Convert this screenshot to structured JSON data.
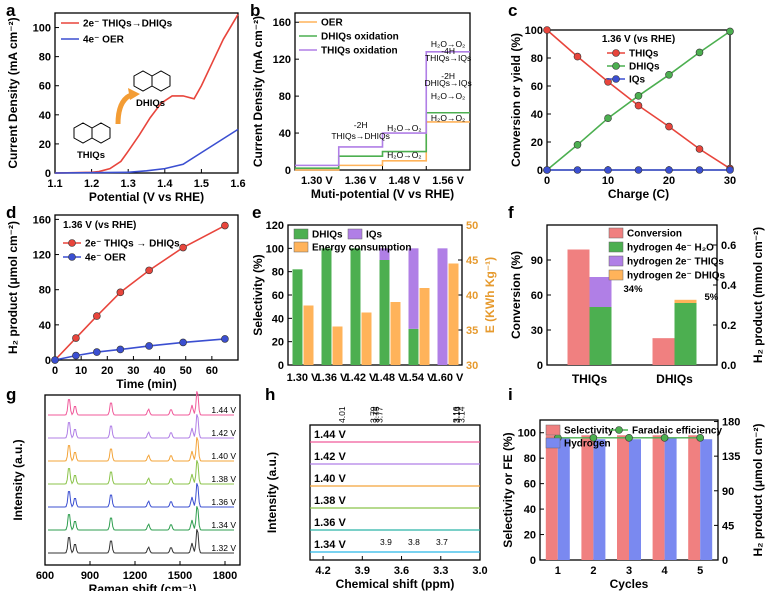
{
  "colors": {
    "red": "#e8453c",
    "blue": "#3b4fd1",
    "green": "#4caf50",
    "purple": "#b07fe6",
    "orange": "#ffb35a",
    "teal": "#2bb3a6",
    "cyan": "#29b6e8",
    "pink": "#f08080",
    "lightgreen": "#7fd07f"
  },
  "chart_data": [
    {
      "panel": "a",
      "type": "line",
      "xlabel": "Potential (V vs RHE)",
      "ylabel": "Current Density (mA cm⁻²)",
      "xlim": [
        1.1,
        1.6
      ],
      "ylim": [
        0,
        110
      ],
      "xticks": [
        "1.1",
        "1.2",
        "1.3",
        "1.4",
        "1.5",
        "1.6"
      ],
      "yticks": [
        "0",
        "20",
        "40",
        "60",
        "80",
        "100"
      ],
      "series": [
        {
          "name": "2e⁻ THIQs→DHIQs",
          "color": "red",
          "x": [
            1.1,
            1.2,
            1.22,
            1.25,
            1.28,
            1.3,
            1.33,
            1.36,
            1.39,
            1.42,
            1.45,
            1.48,
            1.5,
            1.53,
            1.56,
            1.6
          ],
          "y": [
            0,
            0.5,
            1,
            3,
            8,
            15,
            26,
            38,
            48,
            53,
            53,
            51,
            60,
            76,
            92,
            109
          ]
        },
        {
          "name": "4e⁻ OER",
          "color": "blue",
          "x": [
            1.1,
            1.3,
            1.35,
            1.4,
            1.45,
            1.5,
            1.55,
            1.6
          ],
          "y": [
            0,
            0.5,
            1.5,
            3,
            6,
            14,
            22,
            30
          ]
        }
      ],
      "annotations": [
        "DHIQs",
        "THIQs"
      ]
    },
    {
      "panel": "b",
      "type": "line",
      "xlabel": "Muti-potential (V vs RHE)",
      "ylabel": "Current Density (mA cm⁻²)",
      "categories": [
        "1.30 V",
        "1.36 V",
        "1.48 V",
        "1.56 V"
      ],
      "ylim": [
        0,
        170
      ],
      "yticks": [
        "0",
        "40",
        "80",
        "120",
        "160"
      ],
      "series": [
        {
          "name": "OER",
          "color": "orange",
          "values": [
            0,
            5,
            10,
            52
          ]
        },
        {
          "name": "DHIQs oxidation",
          "color": "green",
          "values": [
            2,
            15,
            20,
            62
          ]
        },
        {
          "name": "THIQs oxidation",
          "color": "purple",
          "values": [
            5,
            25,
            40,
            128
          ]
        }
      ],
      "annotations": [
        "THIQs→DHIQs",
        "-2H",
        "H₂O→O₂",
        "H₂O→O₂",
        "DHIQs→IQs",
        "THIQs→IQs",
        "-4H",
        "-2H",
        "H₂O→O₂",
        "H₂O→O₂",
        "H₂O→O₂",
        "H₂O→O₂"
      ]
    },
    {
      "panel": "c",
      "type": "line",
      "xlabel": "Charge (C)",
      "ylabel": "Conversion or yield (%)",
      "xlim": [
        0,
        30
      ],
      "ylim": [
        0,
        100
      ],
      "xticks": [
        "0",
        "10",
        "20",
        "30"
      ],
      "yticks": [
        "0",
        "20",
        "40",
        "60",
        "80",
        "100"
      ],
      "note": "1.36 V (vs RHE)",
      "series": [
        {
          "name": "THIQs",
          "color": "red",
          "x": [
            0,
            5,
            10,
            15,
            20,
            25,
            30
          ],
          "y": [
            100,
            81,
            63,
            46,
            31,
            15,
            1
          ]
        },
        {
          "name": "DHIQs",
          "color": "green",
          "x": [
            0,
            5,
            10,
            15,
            20,
            25,
            30
          ],
          "y": [
            0,
            18,
            37,
            53,
            68,
            84,
            99
          ]
        },
        {
          "name": "IQs",
          "color": "blue",
          "x": [
            0,
            5,
            10,
            15,
            20,
            25,
            30
          ],
          "y": [
            0,
            0,
            0,
            0,
            0,
            0,
            0
          ]
        }
      ]
    },
    {
      "panel": "d",
      "type": "line",
      "xlabel": "Time (min)",
      "ylabel": "H₂ product (μmol cm⁻²)",
      "xlim": [
        0,
        70
      ],
      "ylim": [
        0,
        165
      ],
      "xticks": [
        "0",
        "10",
        "20",
        "30",
        "40",
        "50",
        "60"
      ],
      "yticks": [
        "0",
        "40",
        "80",
        "120",
        "160"
      ],
      "note": "1.36 V (vs RHE)",
      "series": [
        {
          "name": "2e⁻ THIQs → DHIQs",
          "color": "red",
          "x": [
            0,
            8,
            16,
            25,
            36,
            49,
            65
          ],
          "y": [
            0,
            25,
            50,
            77,
            102,
            128,
            153
          ]
        },
        {
          "name": "4e⁻ OER",
          "color": "blue",
          "x": [
            0,
            8,
            16,
            25,
            36,
            49,
            65
          ],
          "y": [
            0,
            5,
            9,
            12,
            16,
            20,
            24
          ]
        }
      ]
    },
    {
      "panel": "e",
      "type": "bar",
      "categories": [
        "1.30 V",
        "1.36 V",
        "1.42 V",
        "1.48 V",
        "1.54 V",
        "1.60 V"
      ],
      "ylabel": "Selectivity (%)",
      "y2label": "E (KWh Kg⁻¹)",
      "ylim": [
        0,
        120
      ],
      "y2lim": [
        30,
        50
      ],
      "yticks": [
        "0",
        "20",
        "40",
        "60",
        "80",
        "100",
        "120"
      ],
      "y2ticks": [
        "30",
        "35",
        "40",
        "45",
        "50"
      ],
      "series": [
        {
          "name": "DHIQs",
          "color": "green",
          "values": [
            82,
            100,
            100,
            90,
            31,
            0
          ]
        },
        {
          "name": "IQs",
          "color": "purple",
          "values": [
            0,
            0,
            0,
            10,
            69,
            100
          ]
        },
        {
          "name": "Energy consumption",
          "color": "orange",
          "axis": "right",
          "values": [
            38.5,
            35.5,
            37.5,
            39,
            41,
            44.5
          ]
        }
      ]
    },
    {
      "panel": "f",
      "type": "bar",
      "categories": [
        "THIQs",
        "DHIQs"
      ],
      "ylabel": "Conversion (%)",
      "y2label": "H₂ product (mmol cm⁻²)",
      "ylim": [
        0,
        120
      ],
      "y2lim": [
        0,
        0.7
      ],
      "yticks": [
        "0",
        "30",
        "60",
        "90"
      ],
      "y2ticks": [
        "0.0",
        "0.2",
        "0.4",
        "0.6"
      ],
      "series": [
        {
          "name": "Conversion",
          "color": "pink",
          "values": [
            99,
            23
          ]
        },
        {
          "name": "hydrogen 4e⁻ H₂O",
          "color": "green",
          "axis": "right",
          "values": [
            0.29,
            0.31
          ]
        },
        {
          "name": "hydrogen 2e⁻ THIQs",
          "color": "purple",
          "axis": "right",
          "values": [
            0.15,
            0
          ]
        },
        {
          "name": "hydrogen 2e⁻ DHIQs",
          "color": "orange",
          "axis": "right",
          "values": [
            0,
            0.016
          ]
        }
      ],
      "annotations": [
        "34%",
        "5%"
      ]
    },
    {
      "panel": "g",
      "type": "line",
      "xlabel": "Raman shift (cm⁻¹)",
      "ylabel": "Intensity (a.u.)",
      "xlim": [
        600,
        1900
      ],
      "xticks": [
        "600",
        "900",
        "1200",
        "1500",
        "1800"
      ],
      "series_labels": [
        "1.44 V",
        "1.42 V",
        "1.40 V",
        "1.38 V",
        "1.36 V",
        "1.34 V",
        "1.32 V"
      ]
    },
    {
      "panel": "h",
      "type": "line",
      "xlabel": "Chemical shift (ppm)",
      "ylabel": "Intensity (a.u.)",
      "xlim": [
        4.3,
        3.0
      ],
      "xticks": [
        "4.2",
        "3.9",
        "3.6",
        "3.3",
        "3.0"
      ],
      "series_labels": [
        "1.44 V",
        "1.42 V",
        "1.40 V",
        "1.38 V",
        "1.36 V",
        "1.34 V"
      ],
      "peak_labels": [
        "4.01",
        "3.79",
        "3.77",
        "3.75",
        "3.16",
        "3.14",
        "3.13"
      ],
      "inset_ticks": [
        "3.9",
        "3.8",
        "3.7"
      ]
    },
    {
      "panel": "i",
      "type": "bar",
      "categories": [
        "1",
        "2",
        "3",
        "4",
        "5"
      ],
      "xlabel": "Cycles",
      "ylabel": "Selectivity or FE (%)",
      "y2label": "H₂ product (μmol cm⁻²)",
      "ylim": [
        0,
        110
      ],
      "y2lim": [
        0,
        182
      ],
      "yticks": [
        "0",
        "20",
        "40",
        "60",
        "80",
        "100"
      ],
      "y2ticks": [
        "0",
        "45",
        "90",
        "135",
        "180"
      ],
      "series": [
        {
          "name": "Selectivity",
          "color": "pink",
          "values": [
            98,
            98,
            98,
            98,
            98
          ]
        },
        {
          "name": "Hydrogen",
          "color": "blue",
          "axis": "right",
          "values": [
            158,
            157,
            157,
            158,
            157
          ]
        },
        {
          "name": "Faradaic efficiency",
          "color": "green",
          "type": "line",
          "values": [
            96,
            96,
            96,
            96,
            96
          ]
        }
      ]
    }
  ]
}
